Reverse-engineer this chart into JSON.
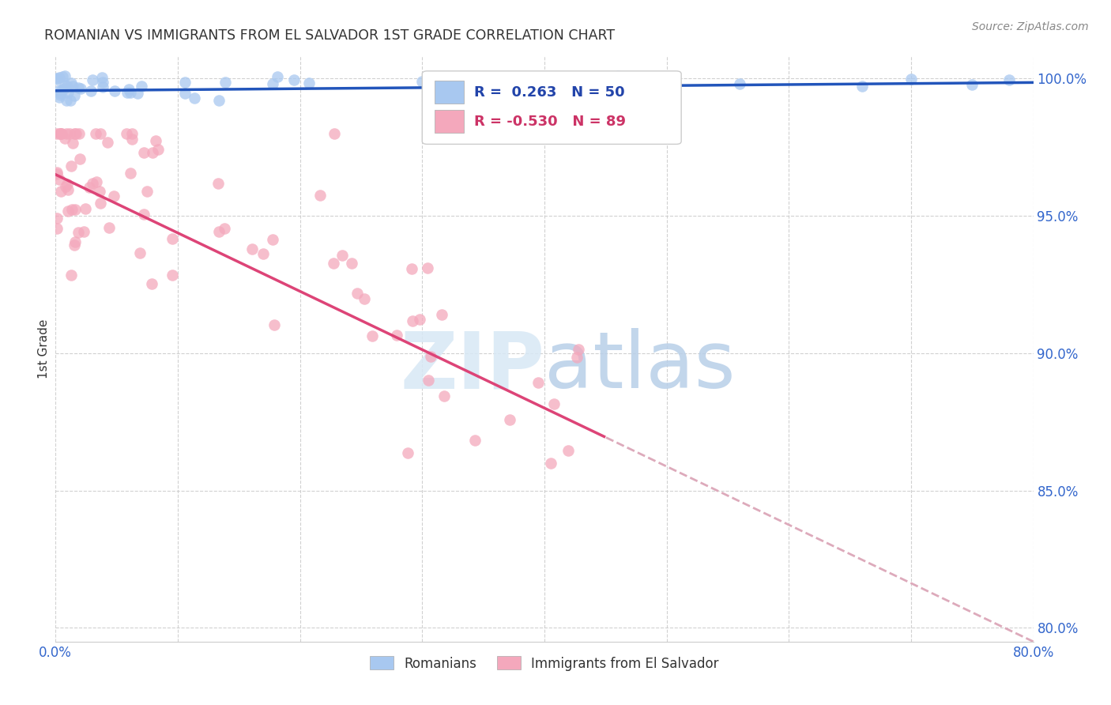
{
  "title": "ROMANIAN VS IMMIGRANTS FROM EL SALVADOR 1ST GRADE CORRELATION CHART",
  "source": "Source: ZipAtlas.com",
  "ylabel_label": "1st Grade",
  "x_min": 0.0,
  "x_max": 0.8,
  "y_min": 0.795,
  "y_max": 1.008,
  "x_ticks": [
    0.0,
    0.1,
    0.2,
    0.3,
    0.4,
    0.5,
    0.6,
    0.7,
    0.8
  ],
  "x_tick_labels": [
    "0.0%",
    "",
    "",
    "",
    "",
    "",
    "",
    "",
    "80.0%"
  ],
  "y_ticks": [
    0.8,
    0.85,
    0.9,
    0.95,
    1.0
  ],
  "y_tick_labels": [
    "80.0%",
    "85.0%",
    "90.0%",
    "95.0%",
    "100.0%"
  ],
  "grid_color": "#cccccc",
  "background_color": "#ffffff",
  "romanian_color": "#a8c8f0",
  "salvador_color": "#f4a8bc",
  "romanian_line_color": "#2255bb",
  "salvador_line_color": "#dd4477",
  "salvador_line_ext_color": "#ddaabb",
  "R_romanian": 0.263,
  "N_romanian": 50,
  "R_salvador": -0.53,
  "N_salvador": 89,
  "legend_label_romanian": "Romanians",
  "legend_label_salvador": "Immigrants from El Salvador",
  "watermark_zip": "ZIP",
  "watermark_atlas": "atlas"
}
